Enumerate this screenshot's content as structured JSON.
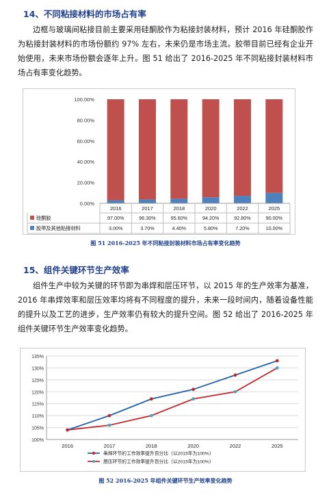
{
  "section14": {
    "heading": "14、不同粘接材料的市场占有率",
    "body": "边框与玻璃间粘接目前主要采用硅酮胶作为粘接封装材料，预计 2016 年硅酮胶作为粘接封装材料的市场份额约 97% 左右，未来仍是市场主流。胶带目前已经有企业开始使用，未来市场份额会逐年上升。图 51 给出了 2016-2025 年不同粘接封装材料市场占有率变化趋势。",
    "caption": "图 51 2016-2025 年不同粘接封装材料市场占有率变化趋势"
  },
  "section15": {
    "heading": "15、组件关键环节生产效率",
    "body": "组件生产中较为关键的环节即为串焊和层压环节，以 2015 年的生产效率为基准，2016 年串焊效率和层压效率均将有不同程度的提升，未来一段时间内，随着设备性能的提升以及工艺的进步，生产效率仍有较大的提升空间。图 52 给出了 2016-2025 年组件关键环节生产效率变化趋势。",
    "caption": "图 52 2016-2025 年组件关键环节生产效率变化趋势"
  },
  "chart_data": [
    {
      "type": "bar",
      "stacked": true,
      "categories": [
        "2016",
        "2017",
        "2018",
        "2020",
        "2022",
        "2025"
      ],
      "series": [
        {
          "name": "硅酮胶",
          "values": [
            97.0,
            96.3,
            95.6,
            94.2,
            92.8,
            90.0
          ],
          "labels": [
            "97.00%",
            "96.30%",
            "95.60%",
            "94.20%",
            "92.80%",
            "90.00%"
          ],
          "color": "#c0504d"
        },
        {
          "name": "胶带及其他粘接材料",
          "values": [
            3.0,
            3.7,
            4.4,
            5.8,
            7.2,
            10.0
          ],
          "labels": [
            "3.00%",
            "3.70%",
            "4.40%",
            "5.80%",
            "7.20%",
            "10.00%"
          ],
          "color": "#4f81bd"
        }
      ],
      "yticks": [
        "0.00%",
        "20.00%",
        "40.00%",
        "60.00%",
        "80.00%",
        "100.00%"
      ],
      "ylim": [
        0,
        100
      ],
      "grid": false,
      "legend": "data-table"
    },
    {
      "type": "line",
      "categories": [
        "2016",
        "2017",
        "2018",
        "2020",
        "2022",
        "2025"
      ],
      "series": [
        {
          "name": "串焊环节的工作效率提升百分比（以2015年为100%）",
          "values": [
            104,
            110,
            117,
            121,
            127,
            133
          ],
          "color": "#1f5fa8",
          "marker": "#c0272d"
        },
        {
          "name": "层压环节的工作效率提升百分比（以2015年为100%）",
          "values": [
            104,
            106,
            110,
            117,
            120,
            130
          ],
          "color": "#c0272d",
          "marker": "#4ba3c3"
        }
      ],
      "yticks": [
        "100%",
        "105%",
        "110%",
        "115%",
        "120%",
        "125%",
        "130%",
        "135%"
      ],
      "ylim": [
        100,
        135
      ],
      "grid": true,
      "legend": "bottom"
    }
  ]
}
